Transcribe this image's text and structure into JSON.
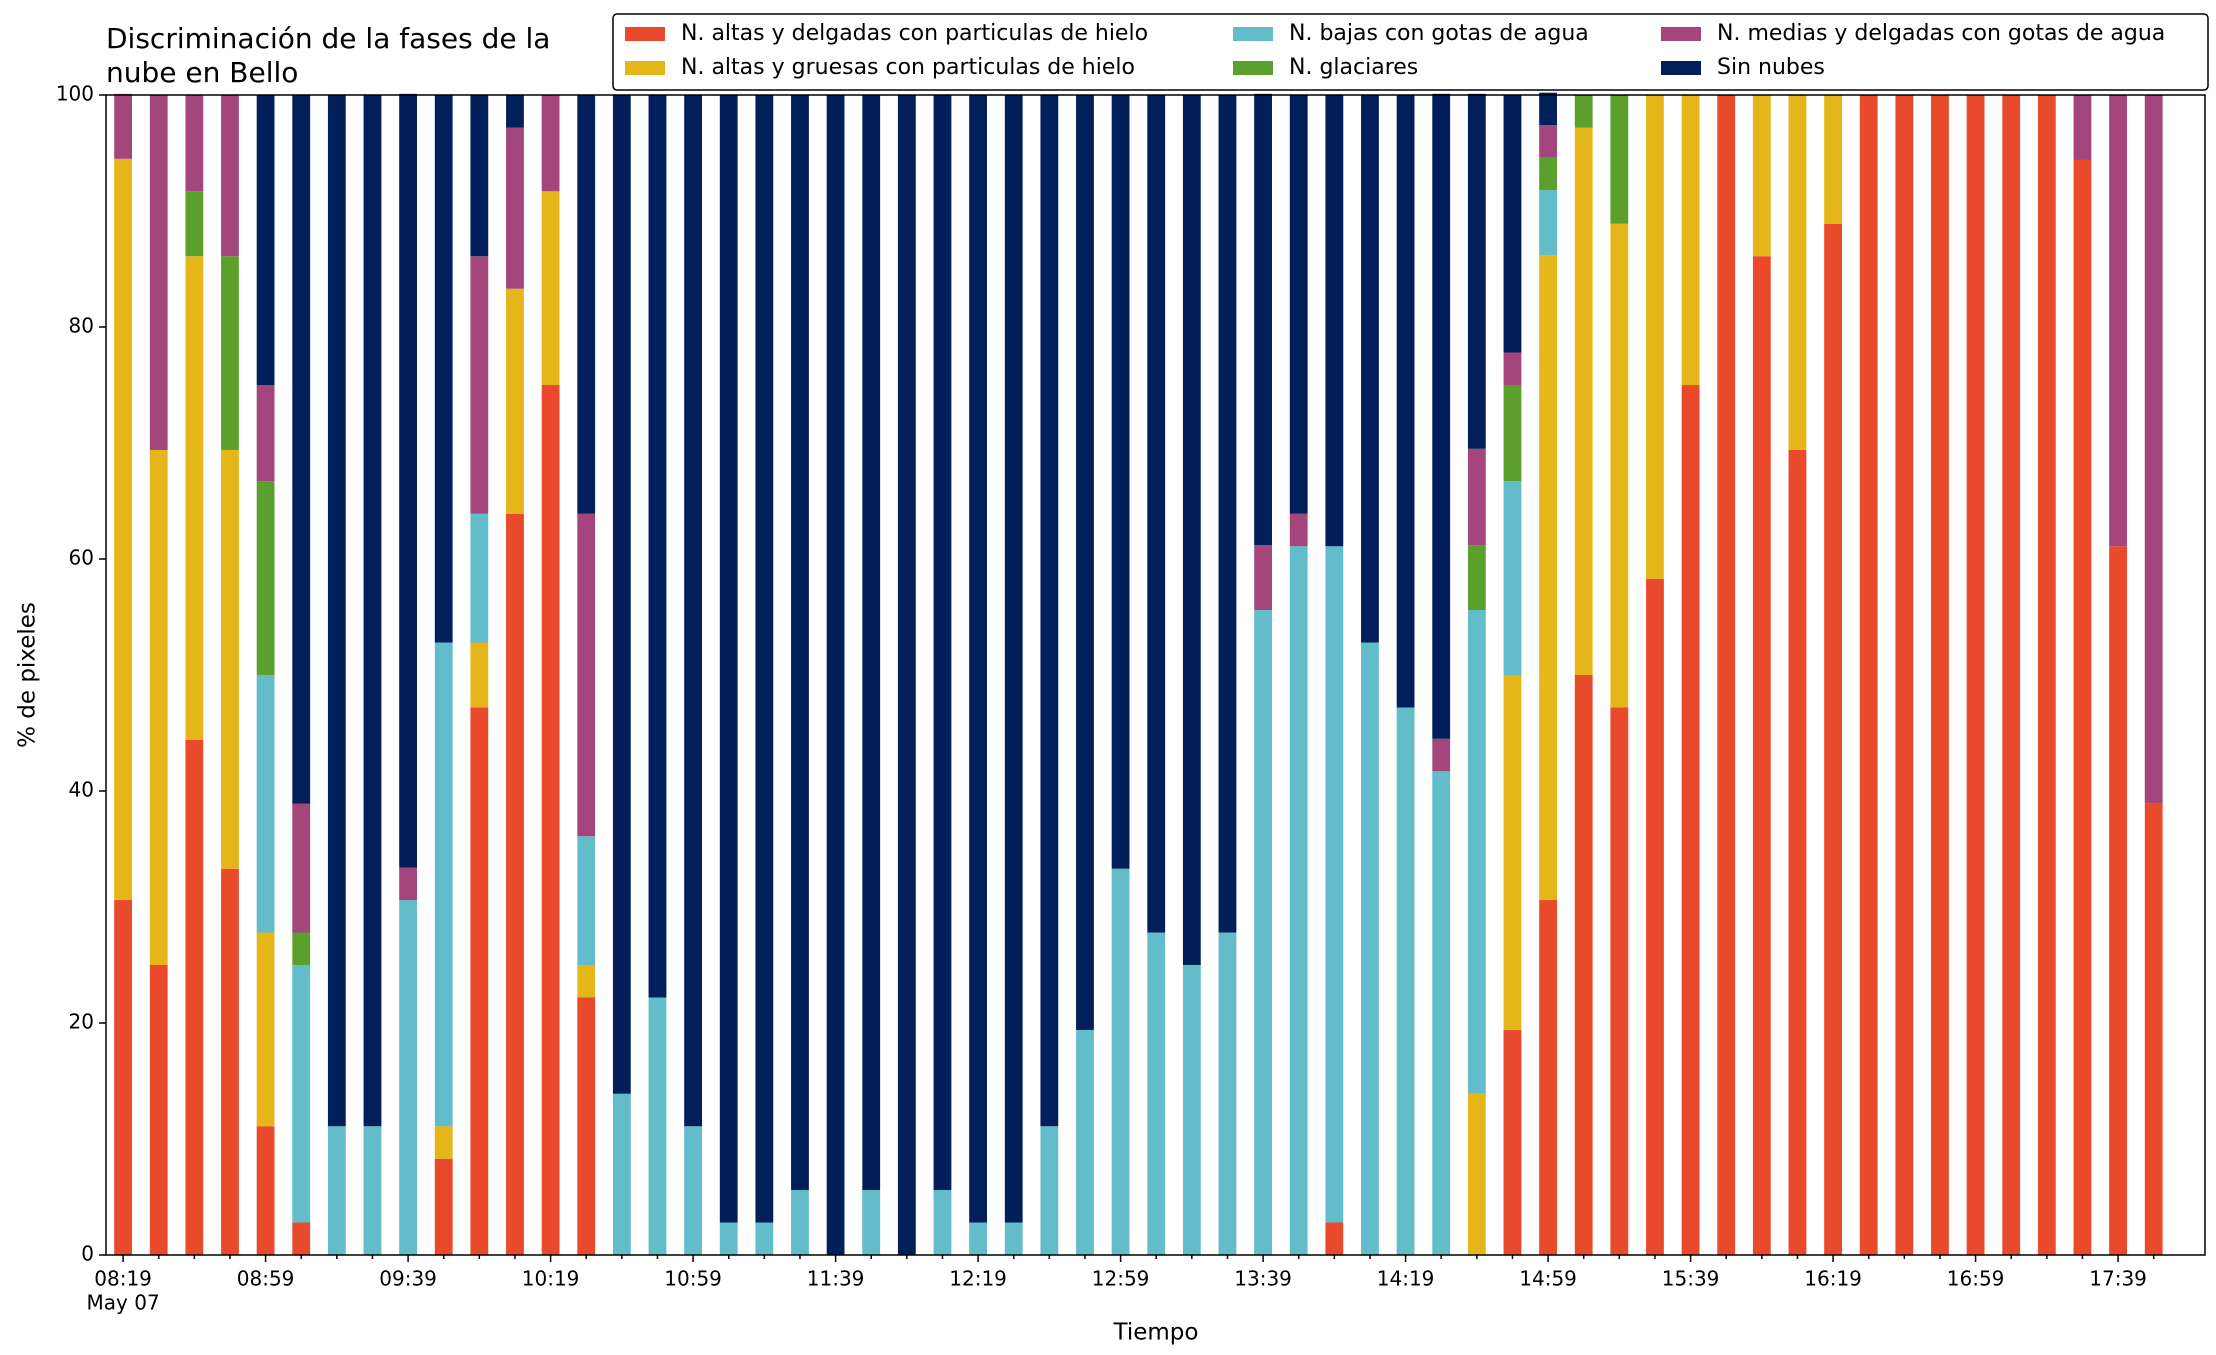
{
  "chart_data": {
    "type": "stacked_bar",
    "title": [
      "Discriminación de la fases de la",
      "nube en Bello"
    ],
    "xlabel": "Tiempo",
    "ylabel": "% de pixeles",
    "date_label": "May 07",
    "categories": [
      "08:19",
      null,
      null,
      null,
      "08:59",
      null,
      null,
      null,
      "09:39",
      null,
      null,
      null,
      "10:19",
      null,
      null,
      null,
      "10:59",
      null,
      null,
      null,
      "11:39",
      null,
      null,
      null,
      "12:19",
      null,
      null,
      null,
      "12:59",
      null,
      null,
      null,
      "13:39",
      null,
      null,
      null,
      "14:19",
      null,
      null,
      null,
      "14:59",
      null,
      null,
      null,
      "15:39",
      null,
      null,
      null,
      "16:19",
      null,
      null,
      null,
      "16:59",
      null,
      null,
      null,
      "17:39",
      null
    ],
    "ylim": [
      0,
      100
    ],
    "yticks": [
      0,
      20,
      40,
      60,
      80,
      100
    ],
    "grid": false,
    "series": [
      {
        "name": "N. altas y delgadas con particulas de hielo",
        "color": "#e84a2b",
        "values": [
          30.6,
          25,
          44.4,
          33.3,
          11.1,
          2.8,
          0,
          0,
          0,
          8.3,
          47.2,
          63.9,
          75,
          22.2,
          0,
          0,
          0,
          0,
          0,
          0,
          0,
          0,
          0,
          0,
          0,
          0,
          0,
          0,
          0,
          0,
          0,
          0,
          0,
          0,
          2.8,
          0,
          0,
          0,
          0,
          19.4,
          30.6,
          50,
          47.2,
          58.3,
          75,
          100,
          86.1,
          69.4,
          88.9,
          100,
          100,
          100,
          100,
          100,
          100,
          94.4,
          61.1,
          38.9
        ]
      },
      {
        "name": "N. altas y gruesas con particulas de hielo",
        "color": "#e5b619",
        "values": [
          63.9,
          44.4,
          41.7,
          36.1,
          16.7,
          0,
          0,
          0,
          0,
          2.8,
          5.6,
          19.4,
          16.7,
          2.8,
          0,
          0,
          0,
          0,
          0,
          0,
          0,
          0,
          0,
          0,
          0,
          0,
          0,
          0,
          0,
          0,
          0,
          0,
          0,
          0,
          0,
          0,
          0,
          0,
          13.9,
          30.6,
          55.6,
          47.2,
          41.7,
          41.7,
          25,
          0,
          13.9,
          30.6,
          11.1,
          0,
          0,
          0,
          0,
          0,
          0,
          0,
          0,
          0
        ]
      },
      {
        "name": "N. bajas con gotas de agua",
        "color": "#63bcc9",
        "values": [
          0,
          0,
          0,
          0,
          22.2,
          22.2,
          11.1,
          11.1,
          30.6,
          41.7,
          11.1,
          0,
          0,
          11.1,
          13.9,
          22.2,
          11.1,
          2.8,
          2.8,
          5.6,
          0,
          5.6,
          0,
          5.6,
          2.8,
          2.8,
          11.1,
          19.4,
          33.3,
          27.8,
          25,
          27.8,
          55.6,
          61.1,
          58.3,
          52.8,
          47.2,
          41.7,
          41.7,
          16.7,
          5.6,
          0,
          0,
          0,
          0,
          0,
          0,
          0,
          0,
          0,
          0,
          0,
          0,
          0,
          0,
          0,
          0,
          0
        ]
      },
      {
        "name": "N. glaciares",
        "color": "#5ba02d",
        "values": [
          0,
          0,
          5.6,
          16.7,
          16.7,
          2.8,
          0,
          0,
          0,
          0,
          0,
          0,
          0,
          0,
          0,
          0,
          0,
          0,
          0,
          0,
          0,
          0,
          0,
          0,
          0,
          0,
          0,
          0,
          0,
          0,
          0,
          0,
          0,
          0,
          0,
          0,
          0,
          0,
          5.6,
          8.3,
          2.8,
          2.8,
          11.1,
          0,
          0,
          0,
          0,
          0,
          0,
          0,
          0,
          0,
          0,
          0,
          0,
          0,
          0,
          0
        ]
      },
      {
        "name": "N. medias y delgadas con gotas de agua",
        "color": "#a4467b",
        "values": [
          5.6,
          30.6,
          8.3,
          13.9,
          8.3,
          11.1,
          0,
          0,
          2.8,
          0,
          22.2,
          13.9,
          8.3,
          27.8,
          0,
          0,
          0,
          0,
          0,
          0,
          0,
          0,
          0,
          0,
          0,
          0,
          0,
          0,
          0,
          0,
          0,
          0,
          5.6,
          2.8,
          0,
          0,
          0,
          2.8,
          8.3,
          2.8,
          2.8,
          0,
          0,
          0,
          0,
          0,
          0,
          0,
          0,
          0,
          0,
          0,
          0,
          0,
          0,
          5.6,
          38.9,
          61.1
        ]
      },
      {
        "name": "Sin nubes",
        "color": "#001f5b",
        "values": [
          0,
          0,
          0,
          0,
          25,
          61.1,
          88.9,
          88.9,
          66.7,
          47.2,
          13.9,
          2.8,
          0,
          36.1,
          86.1,
          77.8,
          88.9,
          97.2,
          97.2,
          94.4,
          100,
          94.4,
          100,
          94.4,
          97.2,
          97.2,
          88.9,
          80.6,
          66.7,
          72.2,
          75,
          72.2,
          38.9,
          36.1,
          38.9,
          47.2,
          52.8,
          55.6,
          30.6,
          22.2,
          2.8,
          0,
          0,
          0,
          0,
          0,
          0,
          0,
          0,
          0,
          0,
          0,
          0,
          0,
          0,
          0,
          0,
          0
        ]
      }
    ]
  }
}
